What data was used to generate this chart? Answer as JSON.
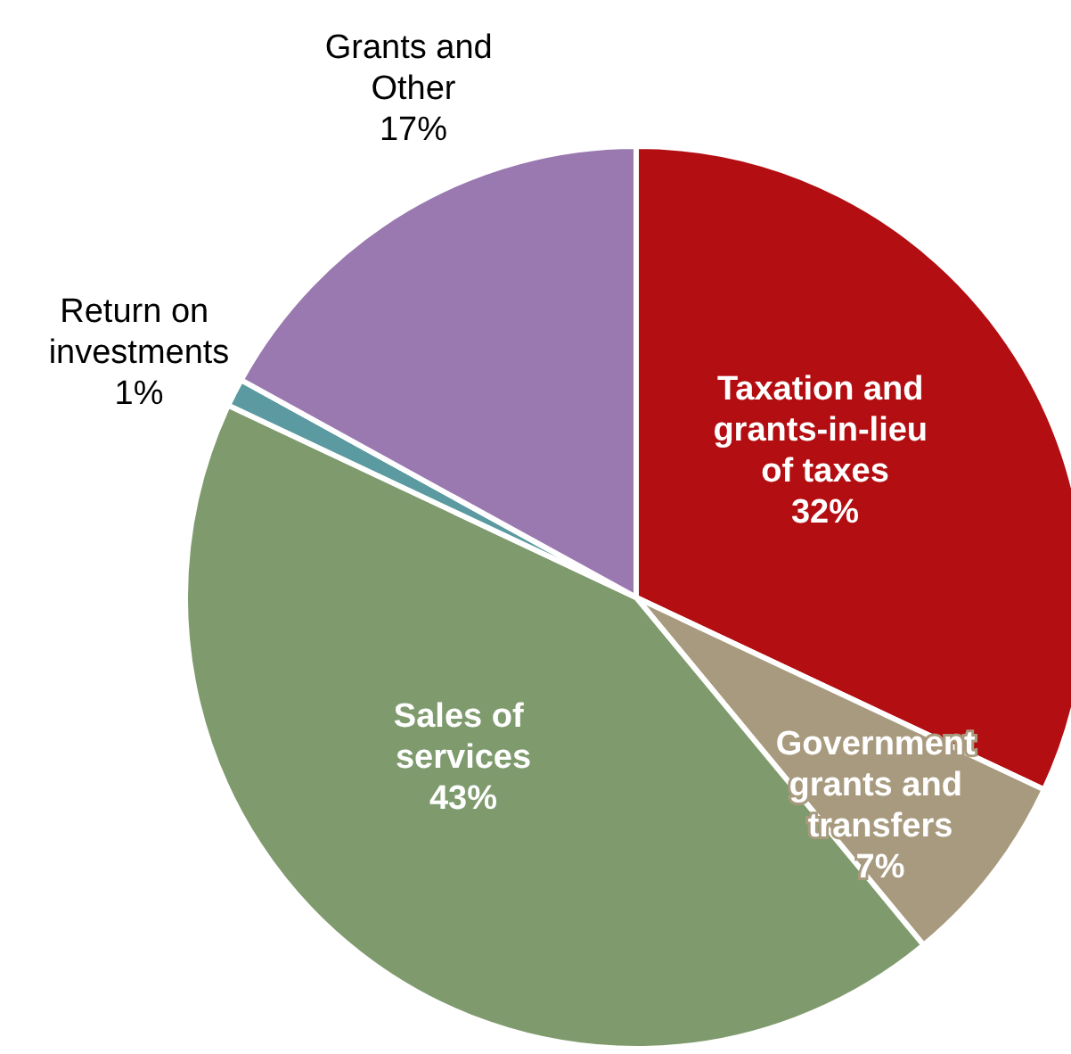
{
  "chart_data": {
    "type": "pie",
    "categories": [
      "Taxation and grants-in-lieu of taxes",
      "Government grants and transfers",
      "Sales of services",
      "Return on investments",
      "Grants and Other"
    ],
    "values": [
      32,
      7,
      43,
      1,
      17
    ],
    "colors": [
      "#b30e12",
      "#a89a7e",
      "#7f9b6e",
      "#5b9aa0",
      "#9a78b0"
    ],
    "value_labels": [
      "32%",
      "7%",
      "43%",
      "1%",
      "17%"
    ],
    "legend": false
  }
}
